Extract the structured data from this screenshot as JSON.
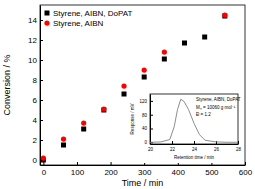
{
  "chart_data": [
    {
      "type": "scatter",
      "xlabel": "Time / min",
      "ylabel": "Conversion / %",
      "xlim": [
        -10,
        600
      ],
      "xticks": [
        0,
        100,
        200,
        300,
        400,
        500,
        600
      ],
      "ylim": [
        -0.5,
        15.5
      ],
      "yticks": [
        0,
        2,
        4,
        6,
        8,
        10,
        12,
        14
      ],
      "legend": "upper-left",
      "series": [
        {
          "name": "Styrene, AIBN, DoPAT",
          "color": "#000000",
          "marker": "square",
          "x": [
            0,
            60,
            120,
            180,
            240,
            300,
            360,
            420,
            480,
            540
          ],
          "values": [
            0,
            1.5,
            3.1,
            5.0,
            6.6,
            8.3,
            10.1,
            11.7,
            12.3,
            14.4
          ]
        },
        {
          "name": "Styrene, AIBN",
          "color": "#ff0000",
          "marker": "circle",
          "x": [
            0,
            60,
            120,
            180,
            240,
            300,
            360,
            540
          ],
          "values": [
            0.2,
            2.1,
            3.7,
            5.1,
            7.4,
            9.0,
            10.8,
            14.5
          ]
        }
      ]
    },
    {
      "type": "line",
      "title": "Styrene, AIBN, DoPAT",
      "xlabel": "Retention time / min",
      "ylabel": "Response / mV",
      "annotations": [
        "Mₙ = 10060 g mol⁻¹",
        "Đ = 1.2"
      ],
      "xlim": [
        20,
        28
      ],
      "xticks": [
        20,
        22,
        24,
        26,
        28
      ],
      "ylim": [
        -5,
        140
      ],
      "yticks": [
        0,
        40,
        80,
        120
      ],
      "x": [
        20,
        21,
        21.8,
        22.2,
        22.5,
        22.8,
        23.1,
        23.5,
        24,
        24.5,
        25,
        26,
        27,
        28
      ],
      "series": [
        {
          "color": "#808080",
          "line_style": "solid",
          "values": [
            0,
            1,
            8,
            45,
            95,
            125,
            118,
            95,
            55,
            22,
            6,
            1,
            0,
            0
          ]
        }
      ]
    }
  ]
}
